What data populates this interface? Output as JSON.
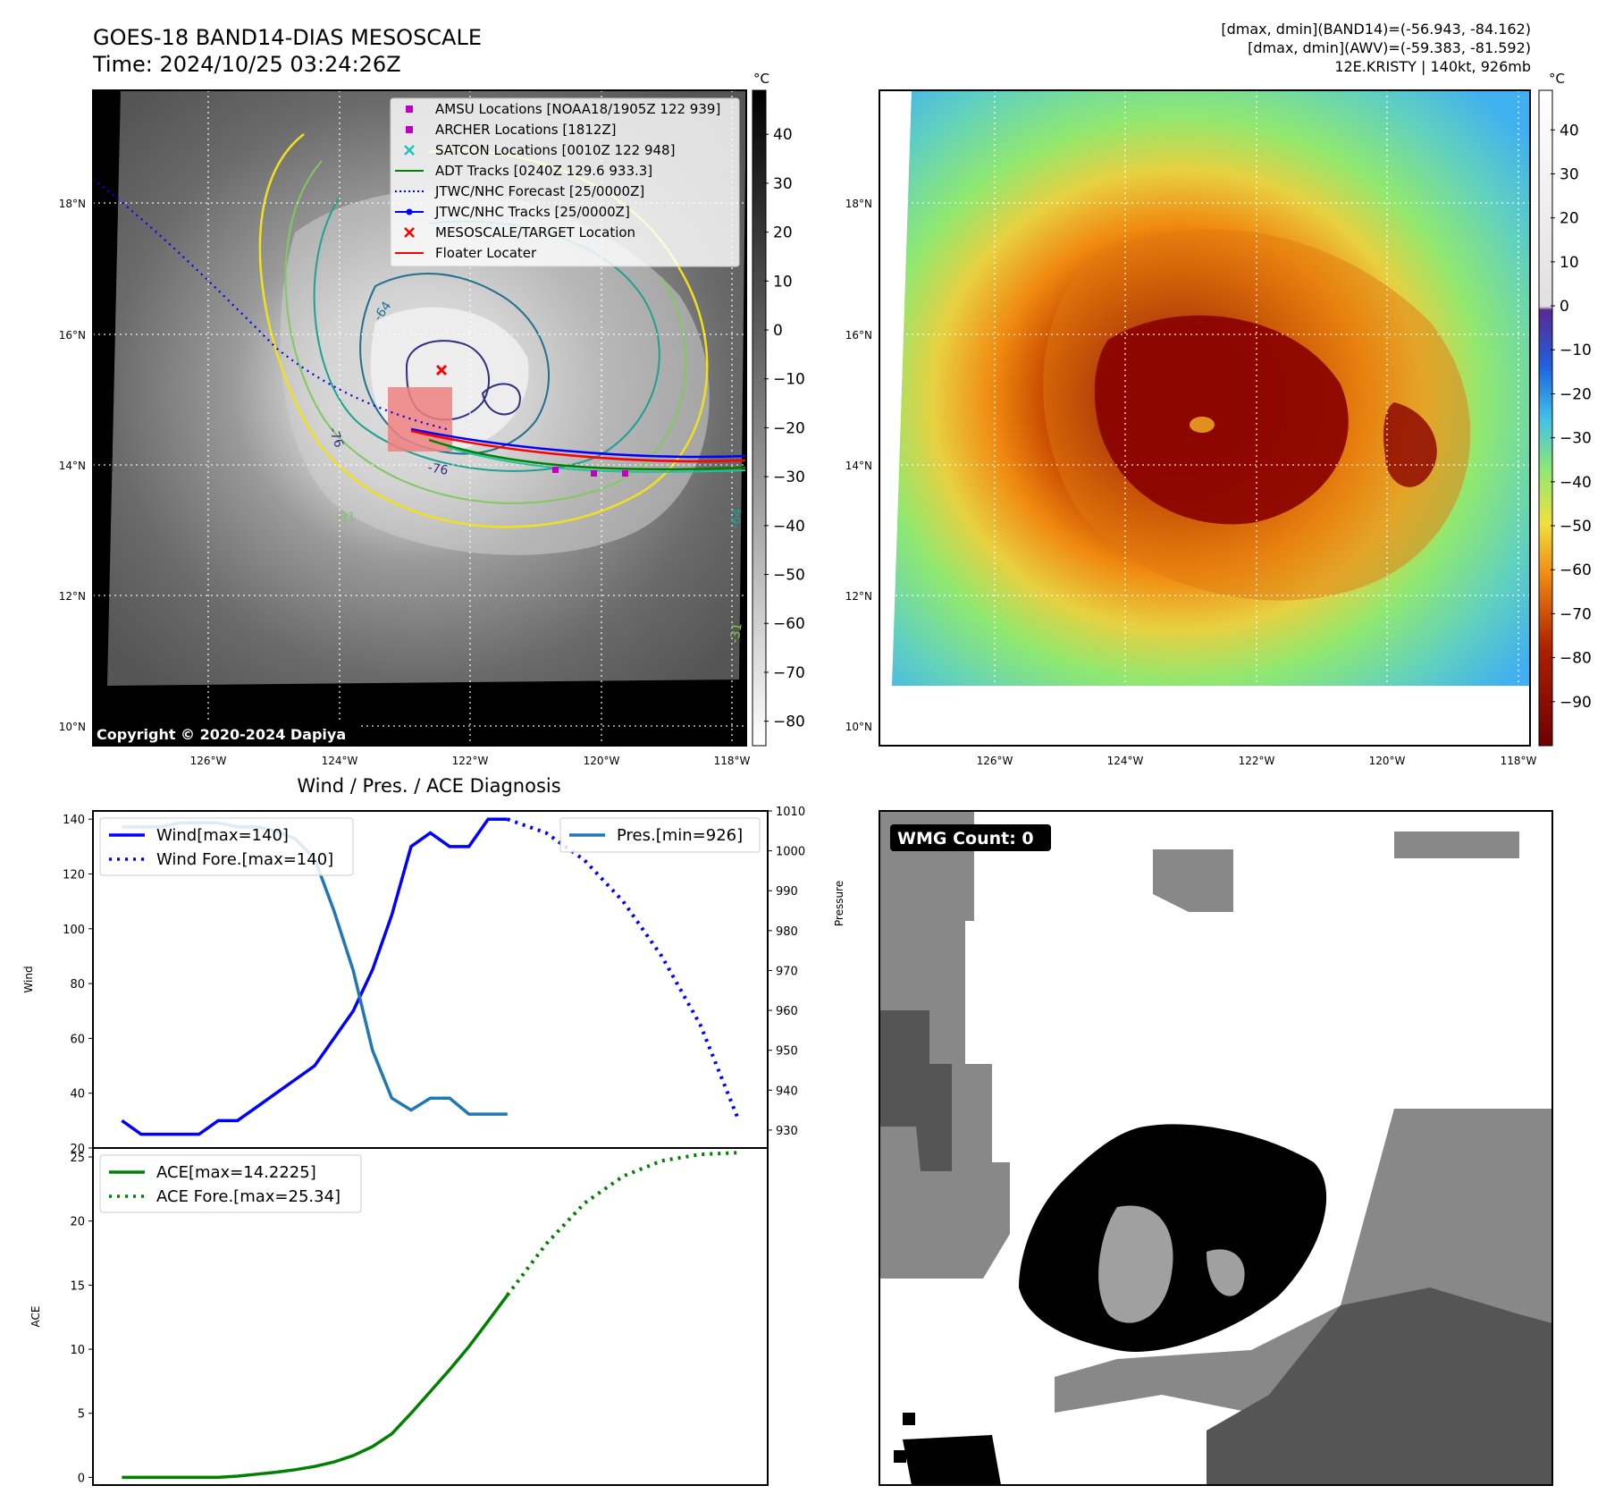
{
  "header": {
    "title_line1": "GOES-18 BAND14-DIAS MESOSCALE",
    "title_line2": "Time: 2024/10/25 03:24:26Z",
    "right_line1": "[dmax, dmin](BAND14)=(-56.943, -84.162)",
    "right_line2": "[dmax, dmin](AWV)=(-59.383, -81.592)",
    "right_line3": "12E.KRISTY | 140kt, 926mb"
  },
  "maps": {
    "lat_ticks": [
      "18°N",
      "16°N",
      "14°N",
      "12°N",
      "10°N"
    ],
    "lon_ticks": [
      "126°W",
      "124°W",
      "122°W",
      "120°W",
      "118°W"
    ],
    "copyright": "Copyright © 2020-2024 Dapiya",
    "unit": "°C",
    "colorbar1_ticks": [
      "40",
      "30",
      "20",
      "10",
      "0",
      "−10",
      "−20",
      "−30",
      "−40",
      "−50",
      "−60",
      "−70",
      "−80"
    ],
    "colorbar2_ticks": [
      "40",
      "30",
      "20",
      "10",
      "0",
      "−10",
      "−20",
      "−30",
      "−40",
      "−50",
      "−60",
      "−70",
      "−80",
      "−90"
    ],
    "legend": [
      {
        "label": "AMSU Locations [NOAA18/1905Z 122 939]",
        "marker": "square",
        "color": "#c000c0"
      },
      {
        "label": "ARCHER Locations [1812Z]",
        "marker": "square",
        "color": "#c000c0"
      },
      {
        "label": "SATCON Locations [0010Z 122 948]",
        "marker": "x",
        "color": "#20c0c0"
      },
      {
        "label": "ADT Tracks [0240Z 129.6 933.3]",
        "marker": "line",
        "color": "#008000"
      },
      {
        "label": "JTWC/NHC Forecast [25/0000Z]",
        "marker": "dotted",
        "color": "#0000ff"
      },
      {
        "label": "JTWC/NHC Tracks [25/0000Z]",
        "marker": "line-dot",
        "color": "#0000ff"
      },
      {
        "label": "MESOSCALE/TARGET Location",
        "marker": "x",
        "color": "#ff0000"
      },
      {
        "label": "Floater Locater",
        "marker": "line",
        "color": "#ff0000"
      }
    ],
    "contour_labels": [
      "-64",
      "-76",
      "-76",
      "-31",
      "-64",
      "-31"
    ]
  },
  "wmg": {
    "badge": "WMG Count: 0"
  },
  "chart_data": [
    {
      "type": "line",
      "title": "Wind / Pres. / ACE Diagnosis",
      "ylabel": "Wind",
      "ylabel_right": "Pressure",
      "ylim": [
        20,
        143
      ],
      "ylim_right": [
        925.5,
        1010
      ],
      "yticks": [
        20,
        40,
        60,
        80,
        100,
        120,
        140
      ],
      "yticks_right": [
        930,
        940,
        950,
        960,
        970,
        980,
        990,
        1000,
        1010
      ],
      "series": [
        {
          "name": "Wind[max=140]",
          "color": "#0000ff",
          "style": "solid",
          "axis": "left",
          "x": [
            0,
            1,
            2,
            3,
            4,
            5,
            6,
            7,
            8,
            9,
            10,
            11,
            12,
            13,
            14,
            15,
            16,
            17,
            18,
            19,
            20
          ],
          "y": [
            30,
            25,
            25,
            25,
            25,
            30,
            30,
            35,
            40,
            45,
            50,
            60,
            70,
            85,
            105,
            130,
            135,
            130,
            130,
            140,
            140
          ]
        },
        {
          "name": "Wind Fore.[max=140]",
          "color": "#0000ff",
          "style": "dotted",
          "axis": "left",
          "x": [
            20,
            22,
            24,
            26,
            28,
            30,
            32
          ],
          "y": [
            140,
            135,
            125,
            110,
            90,
            65,
            30
          ]
        },
        {
          "name": "Pres.[min=926]",
          "color": "#1f77b4",
          "style": "solid",
          "axis": "right",
          "x": [
            0,
            1,
            2,
            3,
            4,
            5,
            6,
            7,
            8,
            9,
            10,
            11,
            12,
            13,
            14,
            15,
            16,
            17,
            18,
            19,
            20
          ],
          "y": [
            1006,
            1006,
            1006,
            1007,
            1007,
            1007,
            1006,
            1006,
            1005,
            1003,
            998,
            985,
            970,
            950,
            938,
            935,
            938,
            938,
            934,
            934,
            934
          ]
        }
      ]
    },
    {
      "type": "line",
      "ylabel": "ACE",
      "ylim": [
        -0.6,
        25.7
      ],
      "yticks": [
        0,
        5,
        10,
        15,
        20,
        25
      ],
      "series": [
        {
          "name": "ACE[max=14.2225]",
          "color": "#008000",
          "style": "solid",
          "x": [
            0,
            1,
            2,
            3,
            4,
            5,
            6,
            7,
            8,
            9,
            10,
            11,
            12,
            13,
            14,
            15,
            16,
            17,
            18,
            19,
            20
          ],
          "y": [
            0,
            0,
            0,
            0,
            0,
            0,
            0.1,
            0.25,
            0.4,
            0.6,
            0.85,
            1.2,
            1.7,
            2.4,
            3.4,
            5.0,
            6.7,
            8.4,
            10.2,
            12.2,
            14.2225
          ]
        },
        {
          "name": "ACE Fore.[max=25.34]",
          "color": "#008000",
          "style": "dotted",
          "x": [
            20,
            22,
            24,
            26,
            28,
            30,
            32
          ],
          "y": [
            14.2225,
            18.2,
            21.4,
            23.5,
            24.7,
            25.2,
            25.34
          ]
        }
      ]
    }
  ]
}
